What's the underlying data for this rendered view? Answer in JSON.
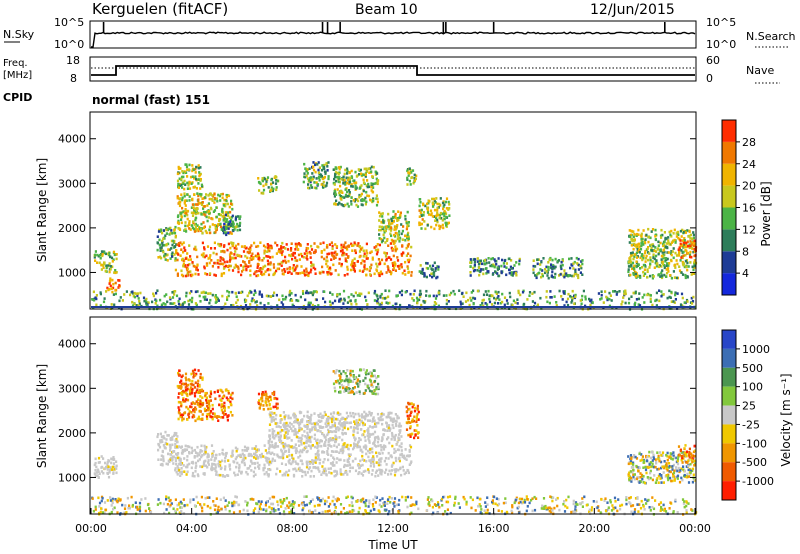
{
  "header": {
    "radar": "Kerguelen (fitACF)",
    "beam": "Beam 10",
    "date": "12/Jun/2015"
  },
  "nsky_panel": {
    "left_label": "N.Sky",
    "right_label": "N.Search",
    "ticks": [
      "10^5",
      "10^0"
    ]
  },
  "freq_panel": {
    "left_label_1": "Freq.",
    "left_label_2": "[MHz]",
    "left_ticks": [
      "18",
      "8"
    ],
    "right_label": "Nave",
    "right_ticks": [
      "60",
      "0"
    ],
    "cpid_label": "CPID",
    "mode_text": "normal (fast) 151"
  },
  "colors": {
    "ground_scatter": "#c8c8c8",
    "power_scale": [
      "#1428dc",
      "#1e3c96",
      "#2d7d5a",
      "#4bb446",
      "#c8c81e",
      "#f0b400",
      "#f07800",
      "#ff2d00"
    ],
    "velocity_scale": [
      "#2846c8",
      "#3c6eb4",
      "#4b9650",
      "#82c83c",
      "#c8c8c8",
      "#f0c800",
      "#f09600",
      "#f05a00",
      "#ff1e00"
    ]
  },
  "chart_data": [
    {
      "type": "heatmap",
      "name": "power",
      "ylabel": "Slant Range [km]",
      "y_ticks": [
        1000,
        2000,
        3000,
        4000
      ],
      "ylim": [
        180,
        4600
      ],
      "xlim": [
        0,
        24
      ],
      "colorbar_label": "Power [dB]",
      "colorbar_ticks": [
        4,
        8,
        12,
        16,
        20,
        24,
        28
      ],
      "colorbar_range": [
        0,
        32
      ],
      "regions": [
        {
          "t0": 0.0,
          "t1": 24.0,
          "r0": 200,
          "r1": 620,
          "level": 0.4
        },
        {
          "t0": 0.1,
          "t1": 1.0,
          "r0": 1000,
          "r1": 1500,
          "level": 0.5
        },
        {
          "t0": 0.6,
          "t1": 1.1,
          "r0": 580,
          "r1": 900,
          "level": 0.85
        },
        {
          "t0": 2.6,
          "t1": 3.4,
          "r0": 1300,
          "r1": 2050,
          "level": 0.45
        },
        {
          "t0": 3.3,
          "t1": 12.7,
          "r0": 950,
          "r1": 1700,
          "level": 0.8
        },
        {
          "t0": 3.4,
          "t1": 5.6,
          "r0": 1900,
          "r1": 2800,
          "level": 0.6
        },
        {
          "t0": 3.4,
          "t1": 4.4,
          "r0": 2900,
          "r1": 3450,
          "level": 0.55
        },
        {
          "t0": 5.2,
          "t1": 5.9,
          "r0": 1850,
          "r1": 2350,
          "level": 0.3
        },
        {
          "t0": 6.6,
          "t1": 7.4,
          "r0": 2800,
          "r1": 3200,
          "level": 0.5
        },
        {
          "t0": 8.4,
          "t1": 9.4,
          "r0": 2900,
          "r1": 3500,
          "level": 0.45
        },
        {
          "t0": 9.6,
          "t1": 11.4,
          "r0": 2500,
          "r1": 3400,
          "level": 0.5
        },
        {
          "t0": 11.4,
          "t1": 12.6,
          "r0": 1700,
          "r1": 2400,
          "level": 0.55
        },
        {
          "t0": 12.5,
          "t1": 12.9,
          "r0": 3000,
          "r1": 3400,
          "level": 0.45
        },
        {
          "t0": 13.0,
          "t1": 14.2,
          "r0": 2000,
          "r1": 2700,
          "level": 0.55
        },
        {
          "t0": 13.0,
          "t1": 13.8,
          "r0": 900,
          "r1": 1250,
          "level": 0.35
        },
        {
          "t0": 15.0,
          "t1": 17.0,
          "r0": 950,
          "r1": 1350,
          "level": 0.35
        },
        {
          "t0": 17.5,
          "t1": 19.5,
          "r0": 900,
          "r1": 1350,
          "level": 0.4
        },
        {
          "t0": 21.3,
          "t1": 24.0,
          "r0": 900,
          "r1": 2000,
          "level": 0.5
        },
        {
          "t0": 23.3,
          "t1": 24.0,
          "r0": 1350,
          "r1": 1750,
          "level": 0.85
        }
      ]
    },
    {
      "type": "heatmap",
      "name": "velocity",
      "ylabel": "Slant Range [km]",
      "xlabel": "Time UT",
      "x_ticks": [
        "00:00",
        "04:00",
        "08:00",
        "12:00",
        "16:00",
        "20:00",
        "00:00"
      ],
      "y_ticks": [
        1000,
        2000,
        3000,
        4000
      ],
      "ylim": [
        180,
        4600
      ],
      "xlim": [
        0,
        24
      ],
      "colorbar_label": "Velocity [m s⁻¹]",
      "colorbar_ticks": [
        "1000",
        "500",
        "100",
        "25",
        "-25",
        "-100",
        "-500",
        "-1000"
      ],
      "regions": [
        {
          "t0": 0.0,
          "t1": 24.0,
          "r0": 200,
          "r1": 600,
          "class": "mixed"
        },
        {
          "t0": 0.1,
          "t1": 1.0,
          "r0": 1000,
          "r1": 1500,
          "class": "ground"
        },
        {
          "t0": 2.6,
          "t1": 3.4,
          "r0": 1300,
          "r1": 2050,
          "class": "ground"
        },
        {
          "t0": 3.3,
          "t1": 12.7,
          "r0": 1050,
          "r1": 1750,
          "class": "ground"
        },
        {
          "t0": 3.4,
          "t1": 5.6,
          "r0": 2300,
          "r1": 3000,
          "class": "negative"
        },
        {
          "t0": 3.4,
          "t1": 4.4,
          "r0": 2900,
          "r1": 3450,
          "class": "negative"
        },
        {
          "t0": 6.6,
          "t1": 7.4,
          "r0": 2550,
          "r1": 2950,
          "class": "negative"
        },
        {
          "t0": 7.0,
          "t1": 12.3,
          "r0": 1700,
          "r1": 2500,
          "class": "ground"
        },
        {
          "t0": 9.6,
          "t1": 11.4,
          "r0": 2900,
          "r1": 3450,
          "class": "positive"
        },
        {
          "t0": 12.5,
          "t1": 13.0,
          "r0": 1900,
          "r1": 2700,
          "class": "negative"
        },
        {
          "t0": 21.3,
          "t1": 24.0,
          "r0": 900,
          "r1": 1600,
          "class": "mixed"
        },
        {
          "t0": 23.3,
          "t1": 24.0,
          "r0": 1350,
          "r1": 1750,
          "class": "negative"
        }
      ]
    }
  ]
}
